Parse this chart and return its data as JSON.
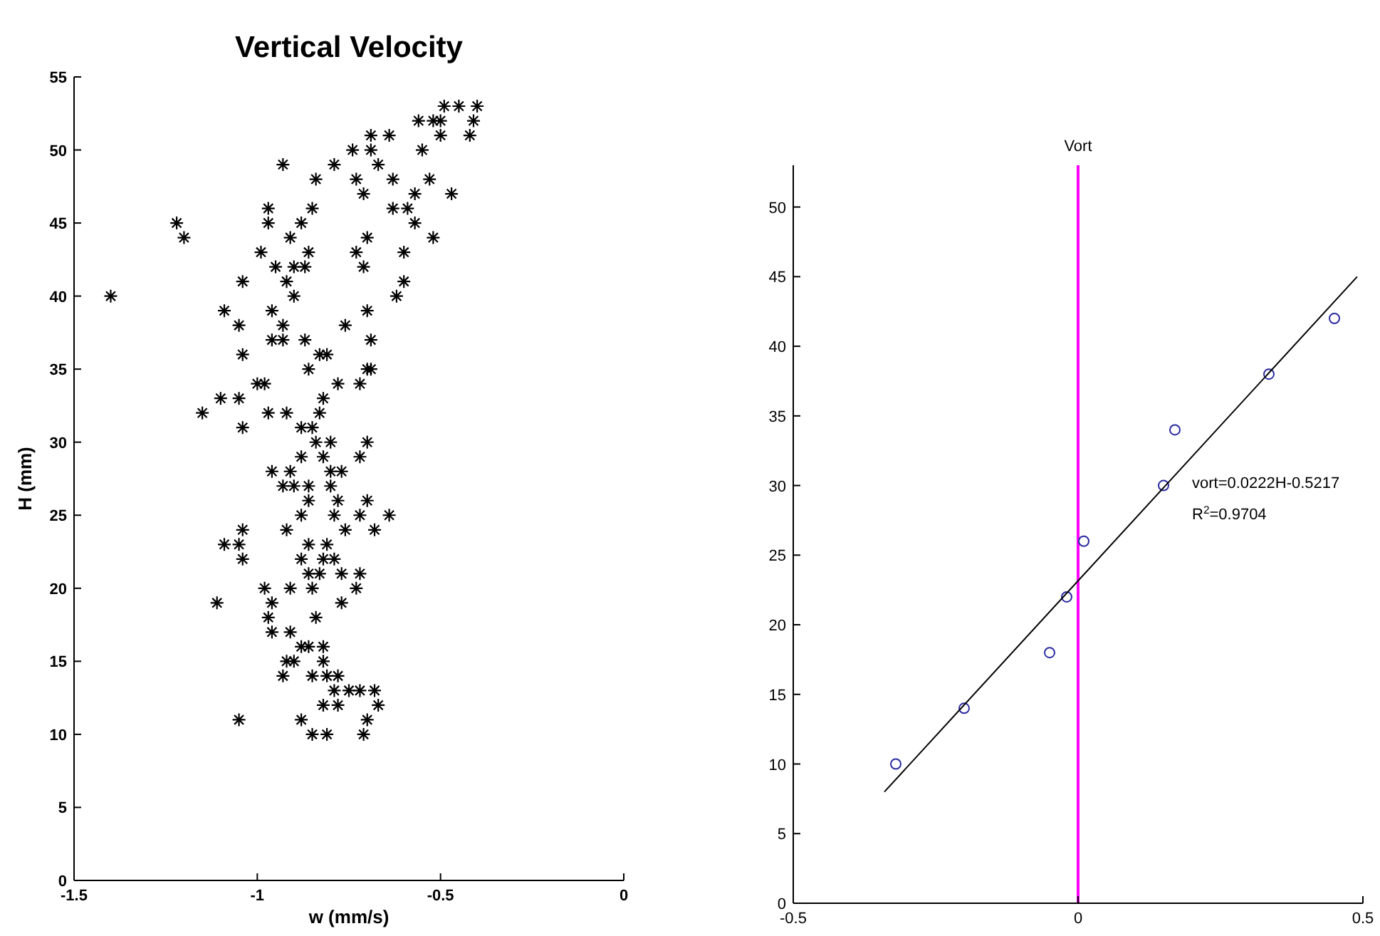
{
  "chart_data": [
    {
      "type": "scatter",
      "title": "Vertical Velocity",
      "xlabel": "w (mm/s)",
      "ylabel": "H (mm)",
      "xlim": [
        -1.5,
        0
      ],
      "xticks": [
        -1.5,
        -1,
        -0.5,
        0
      ],
      "ylim": [
        0,
        55
      ],
      "yticks": [
        0,
        5,
        10,
        15,
        20,
        25,
        30,
        35,
        40,
        45,
        50,
        55
      ],
      "marker": "cross",
      "series": [
        {
          "color": "#000000",
          "x": [
            -0.49,
            -0.45,
            -0.4,
            -0.56,
            -0.52,
            -0.5,
            -0.41,
            -0.69,
            -0.64,
            -0.5,
            -0.42,
            -0.74,
            -0.69,
            -0.55,
            -0.93,
            -0.79,
            -0.67,
            -0.84,
            -0.73,
            -0.63,
            -0.53,
            -0.71,
            -0.57,
            -0.47,
            -0.97,
            -0.85,
            -0.63,
            -0.59,
            -1.22,
            -0.97,
            -0.88,
            -0.57,
            -1.2,
            -0.91,
            -0.7,
            -0.52,
            -0.99,
            -0.86,
            -0.73,
            -0.6,
            -0.95,
            -0.9,
            -0.87,
            -0.71,
            -1.04,
            -0.92,
            -0.6,
            -1.4,
            -0.9,
            -0.62,
            -1.09,
            -0.96,
            -0.7,
            -1.05,
            -0.93,
            -0.76,
            -0.96,
            -0.93,
            -0.87,
            -0.69,
            -1.04,
            -0.83,
            -0.81,
            -0.86,
            -0.7,
            -0.69,
            -1,
            -0.98,
            -0.78,
            -0.72,
            -1.1,
            -1.05,
            -0.82,
            -1.15,
            -0.97,
            -0.92,
            -0.83,
            -1.04,
            -0.88,
            -0.85,
            -0.84,
            -0.8,
            -0.7,
            -0.88,
            -0.82,
            -0.72,
            -0.96,
            -0.91,
            -0.8,
            -0.77,
            -0.93,
            -0.9,
            -0.86,
            -0.8,
            -0.86,
            -0.78,
            -0.7,
            -0.88,
            -0.79,
            -0.72,
            -0.64,
            -1.04,
            -0.92,
            -0.76,
            -0.68,
            -1.09,
            -1.05,
            -0.86,
            -0.81,
            -1.04,
            -0.88,
            -0.82,
            -0.79,
            -0.86,
            -0.83,
            -0.77,
            -0.72,
            -0.98,
            -0.91,
            -0.85,
            -0.73,
            -1.11,
            -0.96,
            -0.77,
            -0.97,
            -0.84,
            -0.96,
            -0.91,
            -0.88,
            -0.86,
            -0.82,
            -0.92,
            -0.9,
            -0.82,
            -0.93,
            -0.85,
            -0.81,
            -0.78,
            -0.79,
            -0.75,
            -0.72,
            -0.68,
            -0.82,
            -0.78,
            -0.67,
            -1.05,
            -0.88,
            -0.7,
            -0.85,
            -0.81,
            -0.71
          ],
          "values": [
            53,
            53,
            53,
            52,
            52,
            52,
            52,
            51,
            51,
            51,
            51,
            50,
            50,
            50,
            49,
            49,
            49,
            48,
            48,
            48,
            48,
            47,
            47,
            47,
            46,
            46,
            46,
            46,
            45,
            45,
            45,
            45,
            44,
            44,
            44,
            44,
            43,
            43,
            43,
            43,
            42,
            42,
            42,
            42,
            41,
            41,
            41,
            40,
            40,
            40,
            39,
            39,
            39,
            38,
            38,
            38,
            37,
            37,
            37,
            37,
            36,
            36,
            36,
            35,
            35,
            35,
            34,
            34,
            34,
            34,
            33,
            33,
            33,
            32,
            32,
            32,
            32,
            31,
            31,
            31,
            30,
            30,
            30,
            29,
            29,
            29,
            28,
            28,
            28,
            28,
            27,
            27,
            27,
            27,
            26,
            26,
            26,
            25,
            25,
            25,
            25,
            24,
            24,
            24,
            24,
            23,
            23,
            23,
            23,
            22,
            22,
            22,
            22,
            21,
            21,
            21,
            21,
            20,
            20,
            20,
            20,
            19,
            19,
            19,
            18,
            18,
            17,
            17,
            16,
            16,
            16,
            15,
            15,
            15,
            14,
            14,
            14,
            14,
            13,
            13,
            13,
            13,
            12,
            12,
            12,
            11,
            11,
            11,
            10,
            10,
            10
          ]
        }
      ]
    },
    {
      "type": "scatter",
      "title": "Vort",
      "xlim": [
        -0.5,
        0.5
      ],
      "xticks": [
        -0.5,
        0,
        0.5
      ],
      "ylim": [
        0,
        53
      ],
      "yticks": [
        0,
        5,
        10,
        15,
        20,
        25,
        30,
        35,
        40,
        45,
        50
      ],
      "marker": "circle",
      "ref_lines": [
        {
          "axis": "x",
          "value": 0,
          "color": "#ff00ff"
        }
      ],
      "annotations": [
        "vort=0.0222H-0.5217",
        "R$^{2}$=0.9704"
      ],
      "series": [
        {
          "color": "#2a2aa0",
          "x": [
            -0.32,
            -0.2,
            -0.05,
            -0.02,
            0.01,
            0.15,
            0.17,
            0.335,
            0.45
          ],
          "values": [
            10,
            14,
            18,
            22,
            26,
            30,
            34,
            38,
            42
          ]
        },
        {
          "type": "line",
          "color": "#000000",
          "marker": "none",
          "x": [
            -0.34,
            0.49
          ],
          "values": [
            8,
            45
          ]
        }
      ]
    }
  ]
}
